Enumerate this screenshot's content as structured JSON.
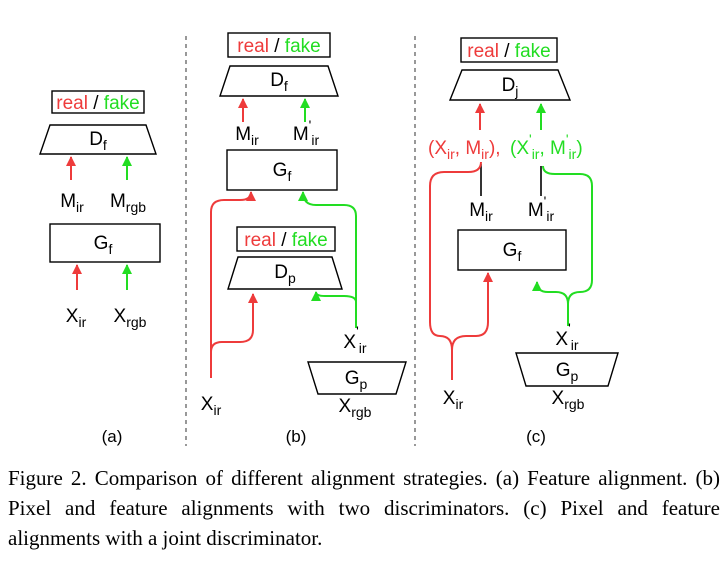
{
  "panels": {
    "a": {
      "caption": "(a)",
      "realfake": {
        "real": "real",
        "sep": " / ",
        "fake": "fake"
      },
      "disc": {
        "main": "D",
        "sub": "f"
      },
      "feat_ir": {
        "main": "M",
        "sub": "ir"
      },
      "feat_rgb": {
        "main": "M",
        "sub": "rgb"
      },
      "gen": {
        "main": "G",
        "sub": "f"
      },
      "in_ir": {
        "main": "X",
        "sub": "ir"
      },
      "in_rgb": {
        "main": "X",
        "sub": "rgb"
      }
    },
    "b": {
      "caption": "(b)",
      "realfake_top": {
        "real": "real",
        "sep": " / ",
        "fake": "fake"
      },
      "disc_f": {
        "main": "D",
        "sub": "f"
      },
      "feat_ir": {
        "main": "M",
        "sub": "ir"
      },
      "feat_ir_prime": {
        "main": "M",
        "prime": "'",
        "sub": "ir"
      },
      "gen_f": {
        "main": "G",
        "sub": "f"
      },
      "realfake_mid": {
        "real": "real",
        "sep": " / ",
        "fake": "fake"
      },
      "disc_p": {
        "main": "D",
        "sub": "p"
      },
      "x_ir_prime": {
        "main": "X",
        "prime": "'",
        "sub": "ir"
      },
      "gen_p": {
        "main": "G",
        "sub": "p"
      },
      "in_ir": {
        "main": "X",
        "sub": "ir"
      },
      "in_rgb": {
        "main": "X",
        "sub": "rgb"
      }
    },
    "c": {
      "caption": "(c)",
      "realfake": {
        "real": "real",
        "sep": " / ",
        "fake": "fake"
      },
      "disc_j": {
        "main": "D",
        "sub": "j"
      },
      "pair_real": {
        "open": "(X",
        "sub1": "ir",
        "mid": ", M",
        "sub2": "ir",
        "close": "),"
      },
      "pair_fake": {
        "open": "(X",
        "prime1": "'",
        "sub1": "ir",
        "mid": ", M",
        "prime2": "'",
        "sub2": "ir",
        "close": ")"
      },
      "feat_ir": {
        "main": "M",
        "sub": "ir"
      },
      "feat_ir_prime": {
        "main": "M",
        "prime": "'",
        "sub": "ir"
      },
      "gen_f": {
        "main": "G",
        "sub": "f"
      },
      "x_ir_prime": {
        "main": "X",
        "prime": "'",
        "sub": "ir"
      },
      "gen_p": {
        "main": "G",
        "sub": "p"
      },
      "in_ir": {
        "main": "X",
        "sub": "ir"
      },
      "in_rgb": {
        "main": "X",
        "sub": "rgb"
      }
    }
  },
  "colors": {
    "real": "#ee3b3b",
    "fake": "#22dd22"
  },
  "caption": {
    "text": "Figure 2. Comparison of different alignment strategies. (a) Feature alignment. (b) Pixel and feature alignments with two discriminators. (c) Pixel and feature alignments with a joint discriminator."
  }
}
